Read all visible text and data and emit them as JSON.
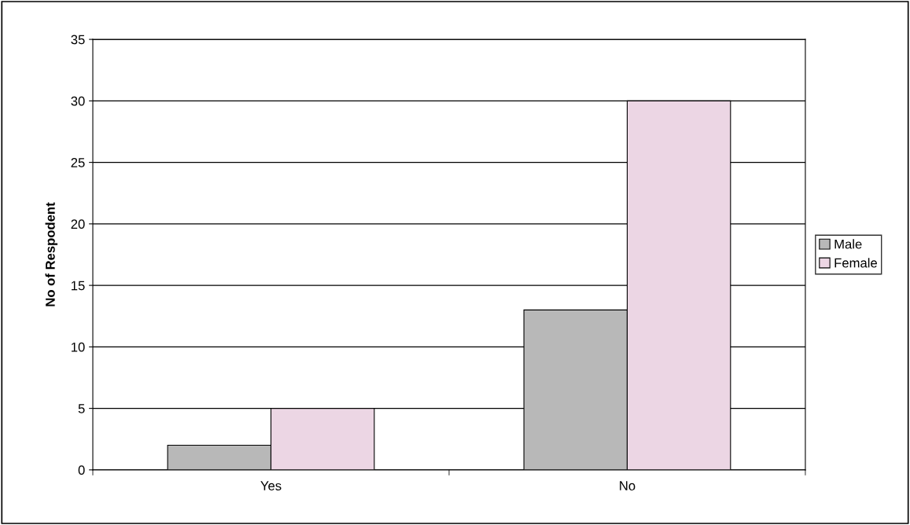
{
  "chart_data": {
    "type": "bar",
    "ylabel": "No of Respodent",
    "categories": [
      "Yes",
      "No"
    ],
    "series": [
      {
        "name": "Male",
        "color": "#b8b8b8",
        "values": [
          2,
          13
        ]
      },
      {
        "name": "Female",
        "color": "#ecd6e4",
        "values": [
          5,
          30
        ]
      }
    ],
    "ylim": [
      0,
      35
    ],
    "yticks": [
      0,
      5,
      10,
      15,
      20,
      25,
      30,
      35
    ],
    "grid": "y",
    "legend": "right"
  }
}
